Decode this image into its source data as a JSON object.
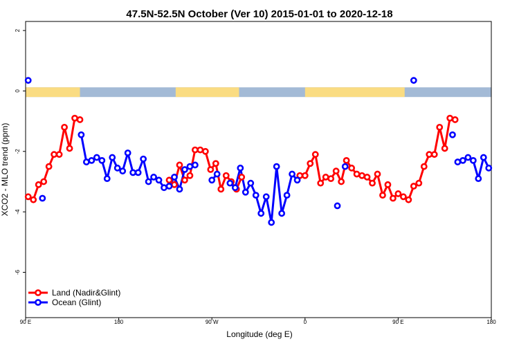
{
  "chart_data": {
    "type": "line",
    "title": "47.5N-52.5N October (Ver 10)   2015-01-01 to 2020-12-18",
    "xlabel": "Longitude (deg E)",
    "ylabel": "XCO2 - MLO trend (ppm)",
    "xlim": [
      90,
      450
    ],
    "ylim": [
      -7.5,
      2.3
    ],
    "x_ticks": [
      {
        "value": 90,
        "label": "90 E"
      },
      {
        "value": 162,
        "label": "180"
      },
      {
        "value": 234,
        "label": "90 W"
      },
      {
        "value": 306,
        "label": "0"
      },
      {
        "value": 378,
        "label": "90 E"
      },
      {
        "value": 450,
        "label": "180"
      }
    ],
    "y_ticks": [
      {
        "value": 2,
        "label": "2"
      },
      {
        "value": 0,
        "label": "0"
      },
      {
        "value": -2,
        "label": "-2"
      },
      {
        "value": -4,
        "label": "-4"
      },
      {
        "value": -6,
        "label": "-6"
      }
    ],
    "surface_band": {
      "y_top": 0.12,
      "y_bottom": -0.2,
      "land_color": "#fadc82",
      "ocean_color": "#a3bad6",
      "land_ranges": [
        [
          90,
          132
        ],
        [
          206,
          255
        ],
        [
          306,
          383
        ]
      ]
    },
    "legend_position": "bottom-left",
    "series": [
      {
        "name": "Land (Nadir&Glint)",
        "color": "#ff0000",
        "points": [
          [
            92,
            -3.5
          ],
          [
            96,
            -3.6
          ],
          [
            100,
            -3.1
          ],
          [
            104,
            -3.0
          ],
          [
            108,
            -2.5
          ],
          [
            112,
            -2.1
          ],
          [
            116,
            -2.1
          ],
          [
            120,
            -1.2
          ],
          [
            124,
            -1.9
          ],
          [
            128,
            -0.9
          ],
          [
            132,
            -0.95
          ],
          [
            201,
            -2.95
          ],
          [
            205,
            -3.1
          ],
          [
            209,
            -2.45
          ],
          [
            213,
            -2.95
          ],
          [
            217,
            -2.8
          ],
          [
            221,
            -1.95
          ],
          [
            225,
            -1.95
          ],
          [
            229,
            -2.0
          ],
          [
            233,
            -2.6
          ],
          [
            237,
            -2.4
          ],
          [
            241,
            -3.25
          ],
          [
            245,
            -2.8
          ],
          [
            249,
            -3.0
          ],
          [
            253,
            -3.25
          ],
          [
            257,
            -2.85
          ],
          [
            302,
            -2.8
          ],
          [
            306,
            -2.8
          ],
          [
            310,
            -2.4
          ],
          [
            314,
            -2.1
          ],
          [
            318,
            -3.05
          ],
          [
            322,
            -2.85
          ],
          [
            326,
            -2.9
          ],
          [
            330,
            -2.65
          ],
          [
            334,
            -3.0
          ],
          [
            338,
            -2.3
          ],
          [
            342,
            -2.55
          ],
          [
            346,
            -2.75
          ],
          [
            350,
            -2.8
          ],
          [
            354,
            -2.85
          ],
          [
            358,
            -3.05
          ],
          [
            362,
            -2.75
          ],
          [
            366,
            -3.45
          ],
          [
            370,
            -3.1
          ],
          [
            374,
            -3.55
          ],
          [
            378,
            -3.4
          ],
          [
            382,
            -3.5
          ],
          [
            386,
            -3.6
          ],
          [
            390,
            -3.15
          ],
          [
            394,
            -3.05
          ],
          [
            398,
            -2.5
          ],
          [
            402,
            -2.1
          ],
          [
            406,
            -2.1
          ],
          [
            410,
            -1.2
          ],
          [
            414,
            -1.9
          ],
          [
            418,
            -0.9
          ],
          [
            422,
            -0.95
          ]
        ]
      },
      {
        "name": "Ocean (Glint)",
        "color": "#0000ff",
        "points": [
          [
            92,
            0.35
          ],
          [
            103,
            -3.55
          ],
          [
            133,
            -1.45
          ],
          [
            137,
            -2.35
          ],
          [
            141,
            -2.3
          ],
          [
            145,
            -2.2
          ],
          [
            149,
            -2.3
          ],
          [
            153,
            -2.9
          ],
          [
            157,
            -2.2
          ],
          [
            161,
            -2.55
          ],
          [
            165,
            -2.65
          ],
          [
            169,
            -2.05
          ],
          [
            173,
            -2.7
          ],
          [
            177,
            -2.7
          ],
          [
            181,
            -2.25
          ],
          [
            185,
            -3.0
          ],
          [
            189,
            -2.85
          ],
          [
            193,
            -2.95
          ],
          [
            197,
            -3.2
          ],
          [
            201,
            -3.15
          ],
          [
            205,
            -2.85
          ],
          [
            209,
            -3.25
          ],
          [
            213,
            -2.6
          ],
          [
            217,
            -2.5
          ],
          [
            221,
            -2.45
          ],
          [
            234,
            -2.95
          ],
          [
            238,
            -2.75
          ],
          [
            248,
            -3.05
          ],
          [
            252,
            -3.2
          ],
          [
            256,
            -2.55
          ],
          [
            260,
            -3.35
          ],
          [
            264,
            -3.05
          ],
          [
            268,
            -3.45
          ],
          [
            272,
            -4.05
          ],
          [
            276,
            -3.5
          ],
          [
            280,
            -4.35
          ],
          [
            284,
            -2.5
          ],
          [
            288,
            -4.05
          ],
          [
            292,
            -3.45
          ],
          [
            296,
            -2.75
          ],
          [
            300,
            -2.95
          ],
          [
            331,
            -3.8
          ],
          [
            337,
            -2.5
          ],
          [
            390,
            0.35
          ],
          [
            420,
            -1.45
          ],
          [
            424,
            -2.35
          ],
          [
            428,
            -2.3
          ],
          [
            432,
            -2.2
          ],
          [
            436,
            -2.3
          ],
          [
            440,
            -2.9
          ],
          [
            444,
            -2.2
          ],
          [
            448,
            -2.55
          ]
        ]
      }
    ],
    "ocean_breaks_after_index": [
      1,
      24,
      26,
      41,
      44
    ]
  }
}
